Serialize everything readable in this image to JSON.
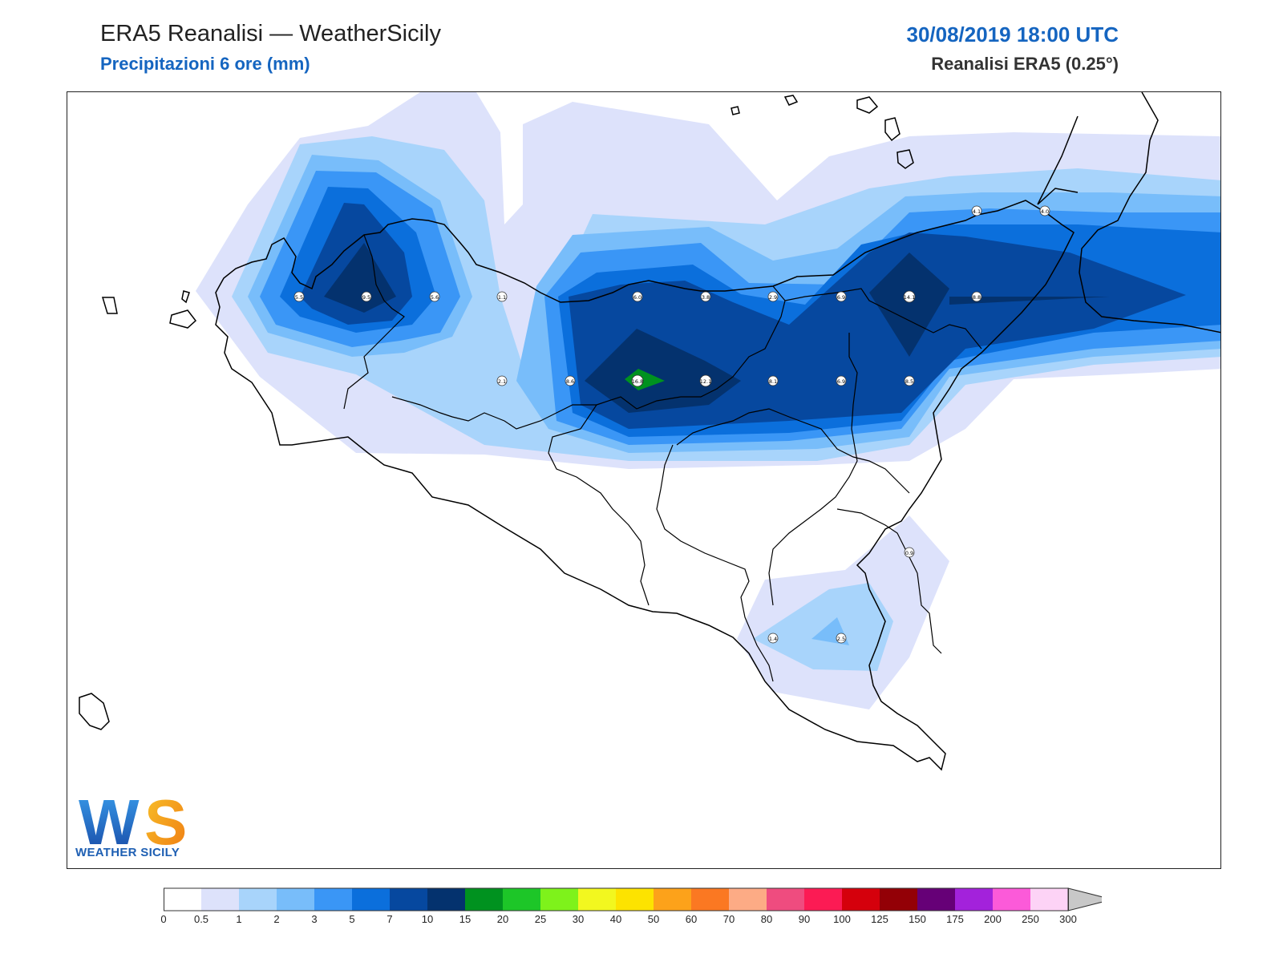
{
  "header": {
    "title_left": "ERA5 Reanalisi — WeatherSicily",
    "subtitle_left": "Precipitazioni 6 ore (mm)",
    "title_right": "30/08/2019 18:00 UTC",
    "subtitle_right": "Reanalisi ERA5 (0.25°)"
  },
  "logo": {
    "letters": "WS",
    "text": "WEATHER SICILY"
  },
  "colorbar": {
    "labels": [
      "0",
      "0.5",
      "1",
      "2",
      "3",
      "5",
      "7",
      "10",
      "15",
      "20",
      "25",
      "30",
      "40",
      "50",
      "60",
      "70",
      "80",
      "90",
      "100",
      "125",
      "150",
      "175",
      "200",
      "250",
      "300"
    ],
    "colors": [
      "#ffffff",
      "#dde2fb",
      "#a8d4fb",
      "#78bdfa",
      "#3a96f6",
      "#0b6fdc",
      "#06489f",
      "#04326e",
      "#00921f",
      "#1dc628",
      "#7ef21b",
      "#f2f71f",
      "#fde300",
      "#fda21a",
      "#fb7822",
      "#fdab85",
      "#ef4c7f",
      "#fc1b54",
      "#d5000c",
      "#930006",
      "#660077",
      "#a322db",
      "#fc5ad9",
      "#fdd3f6"
    ],
    "arrow_color": "#c8c8c8"
  },
  "precip_points": [
    {
      "value": "5.5"
    },
    {
      "value": "9.5"
    },
    {
      "value": "5.6"
    },
    {
      "value": "1.1"
    },
    {
      "value": "6.0"
    },
    {
      "value": "3.8"
    },
    {
      "value": "2.9"
    },
    {
      "value": "6.9"
    },
    {
      "value": "14.1"
    },
    {
      "value": "8.8"
    },
    {
      "value": "4.1"
    },
    {
      "value": "4.0"
    },
    {
      "value": "2.1"
    },
    {
      "value": "8.6"
    },
    {
      "value": "16.8"
    },
    {
      "value": "12.1"
    },
    {
      "value": "8.1"
    },
    {
      "value": "6.9"
    },
    {
      "value": "8.5"
    },
    {
      "value": "0.9"
    },
    {
      "value": "1.4"
    },
    {
      "value": "2.5"
    }
  ]
}
